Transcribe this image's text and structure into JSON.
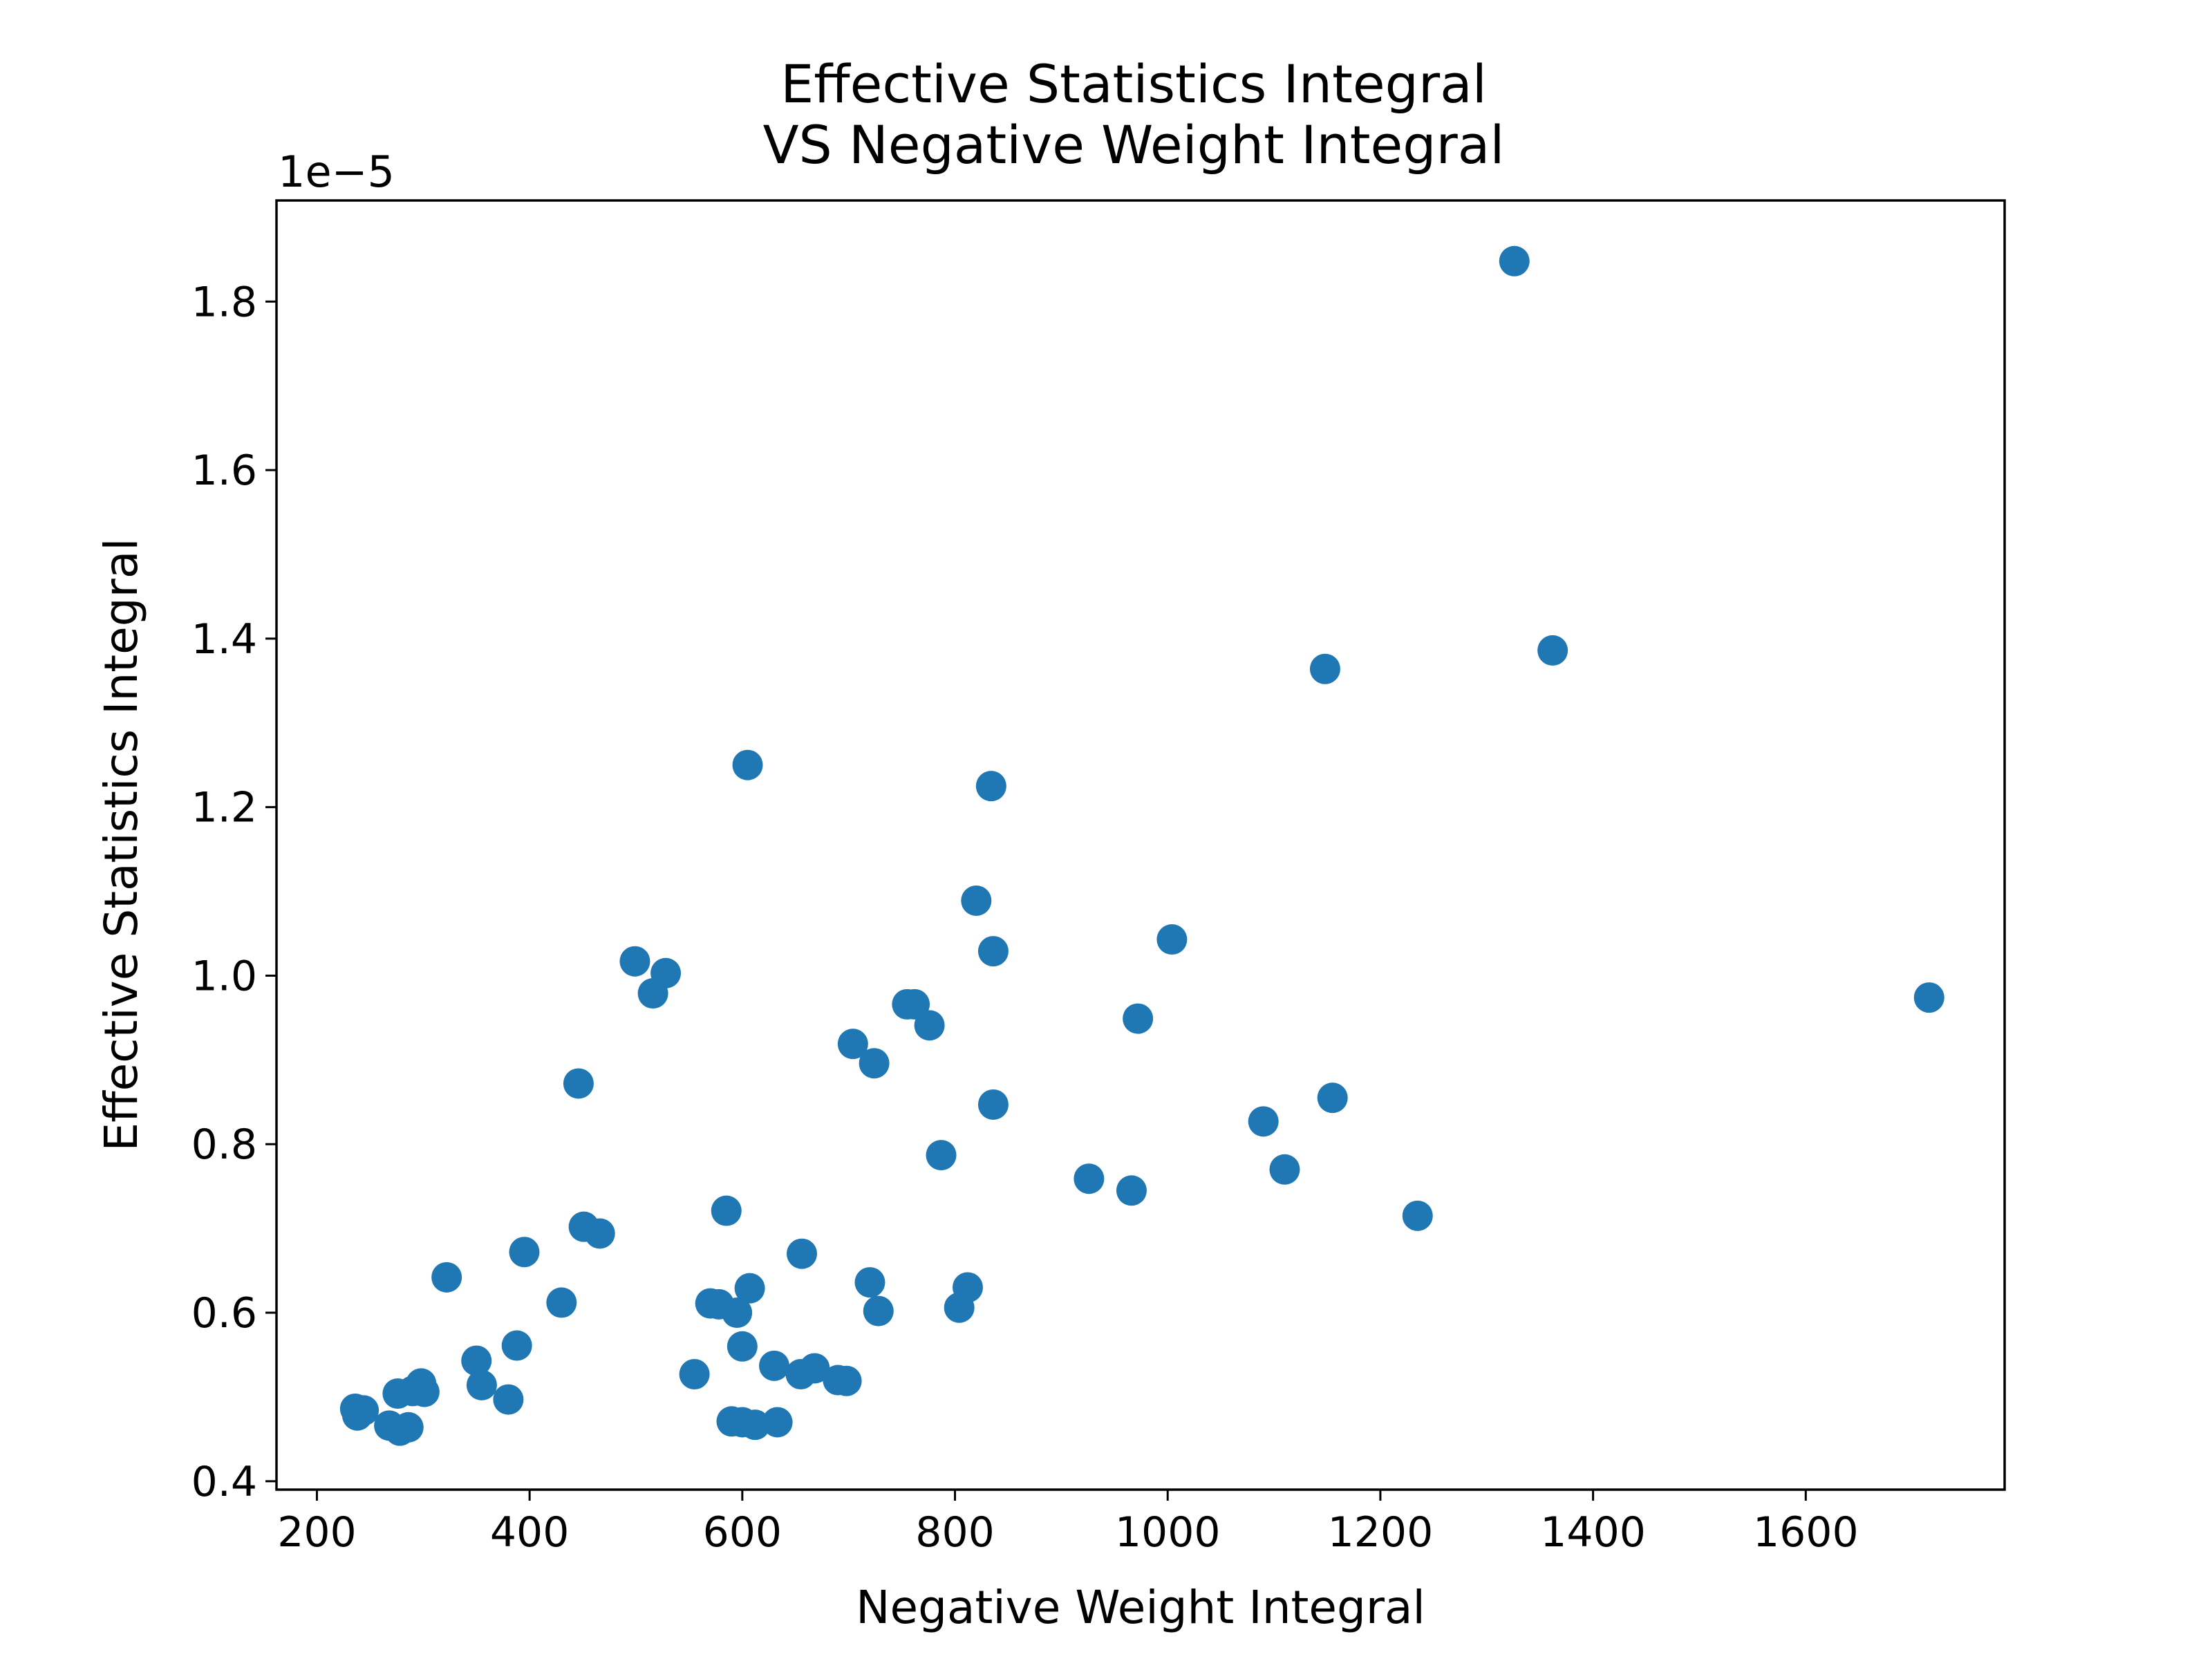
{
  "chart_data": {
    "type": "scatter",
    "title_lines": [
      "Effective Statistics Integral",
      "VS Negative Weight Integral"
    ],
    "xlabel": "Negative Weight Integral",
    "ylabel": "Effective Statistics Integral",
    "offset_text": "1e−5",
    "xlim": [
      162,
      1787
    ],
    "ylim": [
      0.39,
      1.92
    ],
    "xticks": [
      200,
      400,
      600,
      800,
      1000,
      1200,
      1400,
      1600
    ],
    "xtick_labels": [
      "200",
      "400",
      "600",
      "800",
      "1000",
      "1200",
      "1400",
      "1600"
    ],
    "yticks": [
      0.4,
      0.6,
      0.8,
      1.0,
      1.2,
      1.4,
      1.6,
      1.8
    ],
    "ytick_labels": [
      "0.4",
      "0.6",
      "0.8",
      "1.0",
      "1.2",
      "1.4",
      "1.6",
      "1.8"
    ],
    "marker_color": "#1f77b4",
    "grid": false,
    "series": [
      {
        "name": "points",
        "points": [
          [
            236,
            0.486
          ],
          [
            238,
            0.478
          ],
          [
            244,
            0.484
          ],
          [
            268,
            0.466
          ],
          [
            276,
            0.504
          ],
          [
            278,
            0.46
          ],
          [
            286,
            0.464
          ],
          [
            290,
            0.507
          ],
          [
            298,
            0.516
          ],
          [
            301,
            0.506
          ],
          [
            322,
            0.642
          ],
          [
            350,
            0.543
          ],
          [
            355,
            0.514
          ],
          [
            380,
            0.497
          ],
          [
            388,
            0.561
          ],
          [
            395,
            0.672
          ],
          [
            430,
            0.612
          ],
          [
            446,
            0.872
          ],
          [
            451,
            0.702
          ],
          [
            466,
            0.694
          ],
          [
            499,
            1.017
          ],
          [
            516,
            0.979
          ],
          [
            528,
            1.003
          ],
          [
            555,
            0.527
          ],
          [
            570,
            0.611
          ],
          [
            578,
            0.61
          ],
          [
            585,
            0.721
          ],
          [
            590,
            0.471
          ],
          [
            595,
            0.6
          ],
          [
            600,
            0.47
          ],
          [
            600,
            0.56
          ],
          [
            605,
            1.25
          ],
          [
            607,
            0.629
          ],
          [
            612,
            0.467
          ],
          [
            630,
            0.537
          ],
          [
            633,
            0.47
          ],
          [
            655,
            0.527
          ],
          [
            656,
            0.67
          ],
          [
            668,
            0.534
          ],
          [
            690,
            0.52
          ],
          [
            698,
            0.519
          ],
          [
            704,
            0.919
          ],
          [
            720,
            0.636
          ],
          [
            724,
            0.896
          ],
          [
            728,
            0.602
          ],
          [
            755,
            0.966
          ],
          [
            762,
            0.966
          ],
          [
            776,
            0.941
          ],
          [
            787,
            0.787
          ],
          [
            804,
            0.606
          ],
          [
            812,
            0.63
          ],
          [
            820,
            1.089
          ],
          [
            834,
            1.225
          ],
          [
            836,
            0.847
          ],
          [
            836,
            1.029
          ],
          [
            926,
            0.759
          ],
          [
            966,
            0.745
          ],
          [
            972,
            0.949
          ],
          [
            1004,
            1.043
          ],
          [
            1090,
            0.827
          ],
          [
            1110,
            0.77
          ],
          [
            1148,
            1.364
          ],
          [
            1155,
            0.855
          ],
          [
            1235,
            0.715
          ],
          [
            1326,
            1.848
          ],
          [
            1362,
            1.386
          ],
          [
            1716,
            0.974
          ]
        ]
      }
    ]
  }
}
